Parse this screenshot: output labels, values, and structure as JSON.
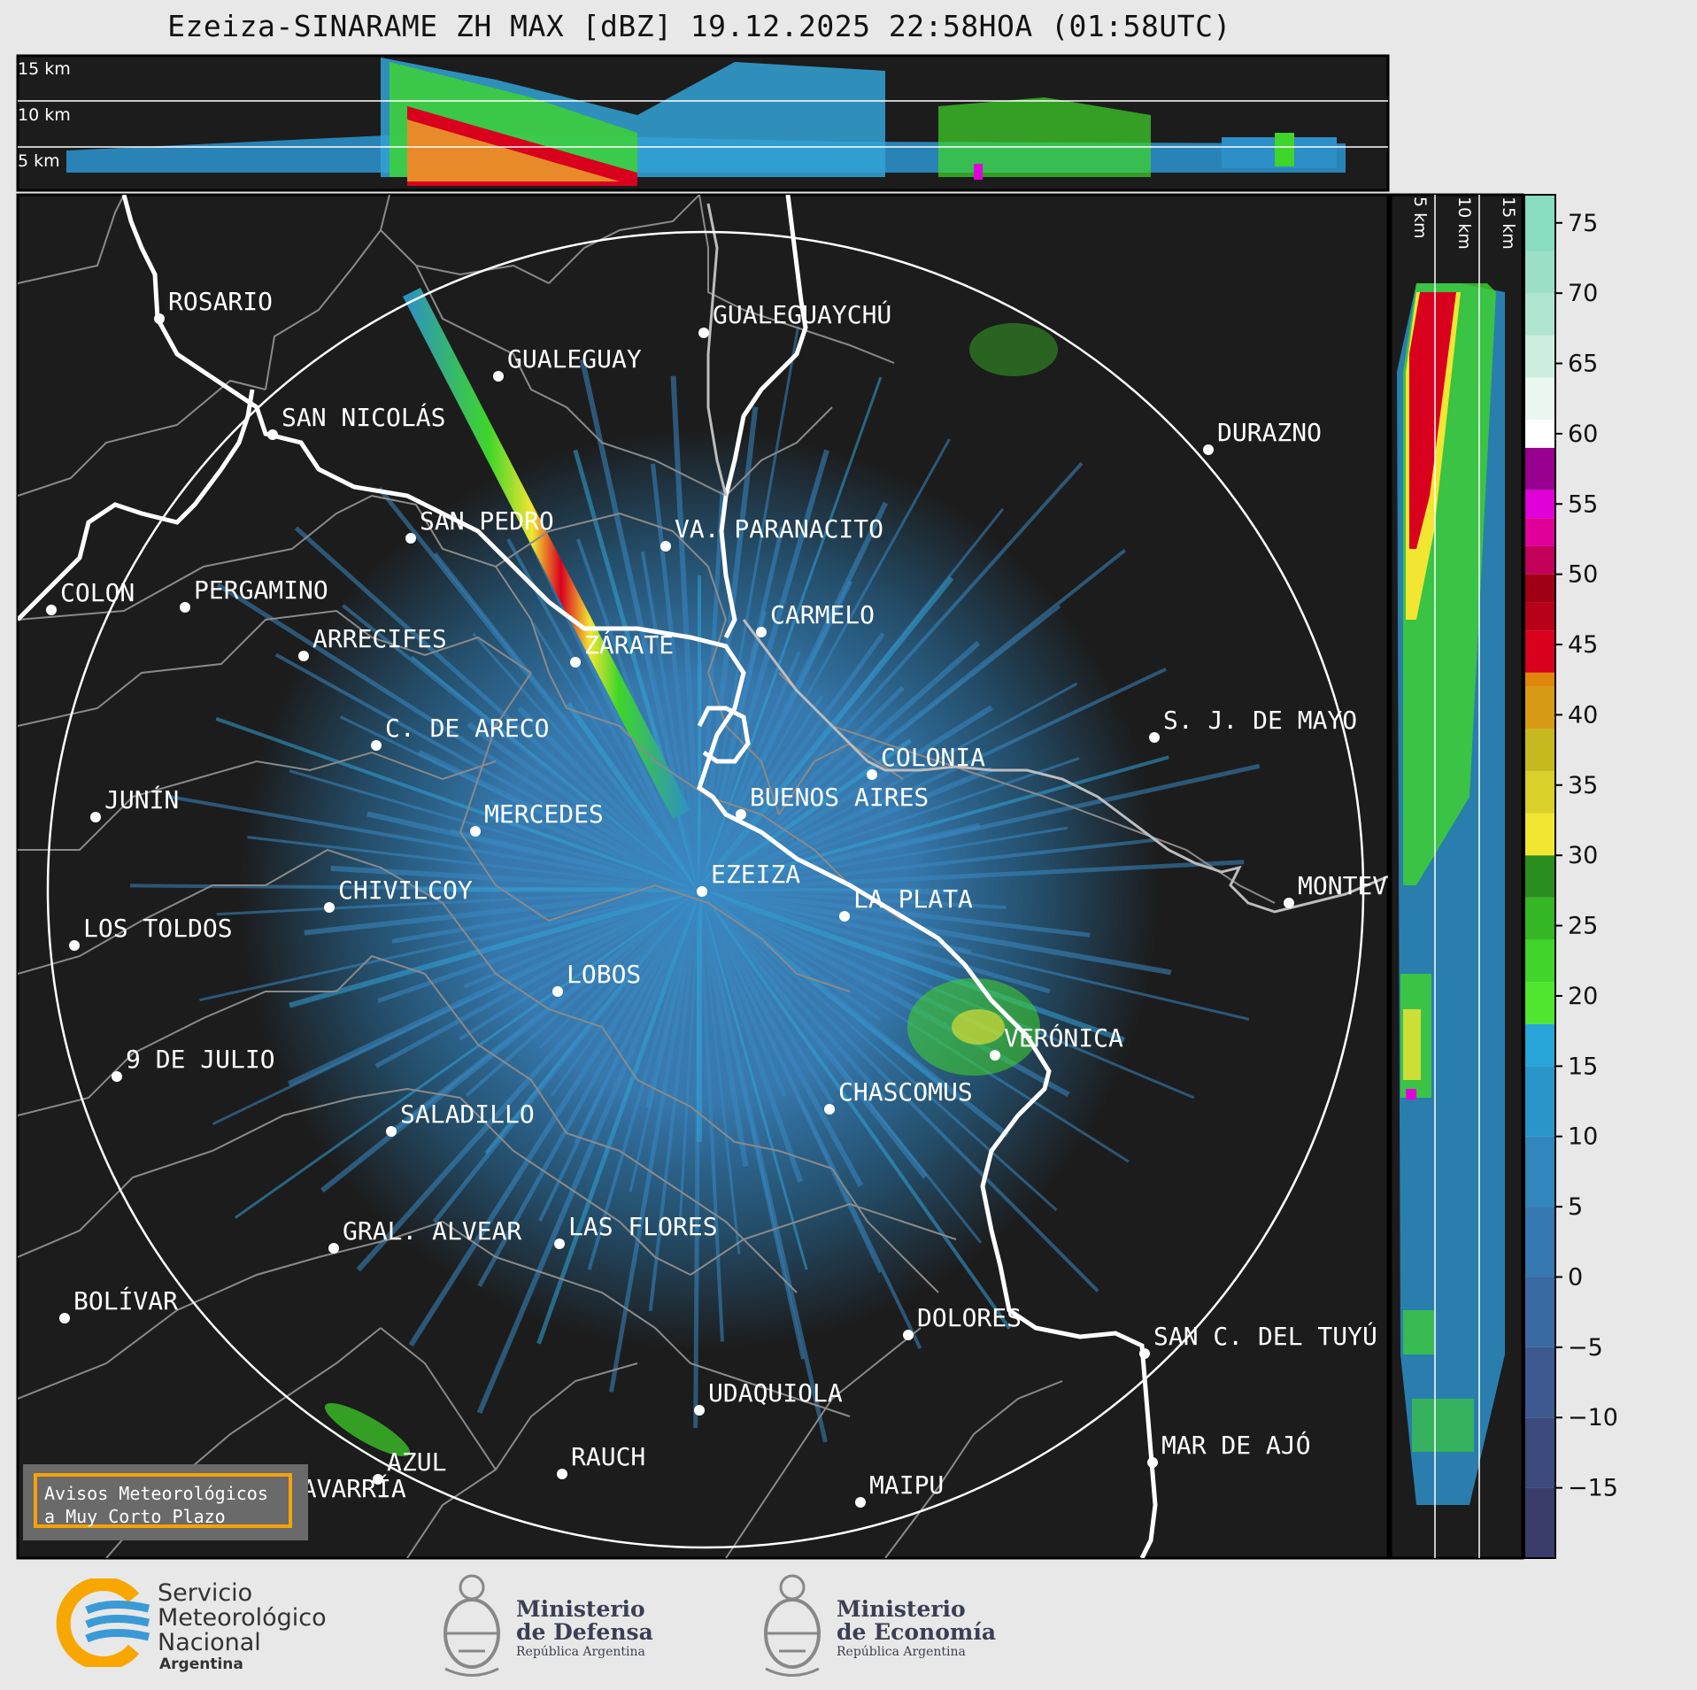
{
  "title": "Ezeiza-SINARAME ZH MAX [dBZ] 19.12.2025 22:58HOA (01:58UTC)",
  "altitude_labels": [
    "15 km",
    "10 km",
    "5 km"
  ],
  "side_altitude_labels": [
    "5 km",
    "10 km",
    "15 km"
  ],
  "colorbar": {
    "ticks": [
      "75",
      "70",
      "65",
      "60",
      "55",
      "50",
      "45",
      "40",
      "35",
      "30",
      "25",
      "20",
      "15",
      "10",
      "5",
      "0",
      "−5",
      "−10",
      "−15"
    ],
    "colors": {
      "low": "#3b3f6e",
      "blue": "#2c8fc8",
      "green": "#3fd52a",
      "yellow": "#f2e632",
      "red": "#d9001e",
      "magenta": "#e000d8",
      "white": "#ffffff",
      "teal": "#88dcbf"
    }
  },
  "cities": [
    {
      "name": "ROSARIO"
    },
    {
      "name": "GUALEGUAYCHÚ"
    },
    {
      "name": "GUALEGUAY"
    },
    {
      "name": "SAN NICOLÁS"
    },
    {
      "name": "DURAZNO"
    },
    {
      "name": "SAN PEDRO"
    },
    {
      "name": "VA. PARANACITO"
    },
    {
      "name": "COLON"
    },
    {
      "name": "PERGAMINO"
    },
    {
      "name": "CARMELO"
    },
    {
      "name": "ARRECIFES"
    },
    {
      "name": "ZÁRATE"
    },
    {
      "name": "S. J. DE MAYO"
    },
    {
      "name": "C. DE ARECO"
    },
    {
      "name": "COLONIA"
    },
    {
      "name": "JUNÍN"
    },
    {
      "name": "BUENOS AIRES"
    },
    {
      "name": "MERCEDES"
    },
    {
      "name": "EZEIZA"
    },
    {
      "name": "MONTEV"
    },
    {
      "name": "CHIVILCOY"
    },
    {
      "name": "LA PLATA"
    },
    {
      "name": "LOS TOLDOS"
    },
    {
      "name": "LOBOS"
    },
    {
      "name": "VERÓNICA"
    },
    {
      "name": "9 DE JULIO"
    },
    {
      "name": "CHASCOMUS"
    },
    {
      "name": "SALADILLO"
    },
    {
      "name": "GRAL. ALVEAR"
    },
    {
      "name": "LAS FLORES"
    },
    {
      "name": "BOLÍVAR"
    },
    {
      "name": "DOLORES"
    },
    {
      "name": "SAN C. DEL TUYÚ"
    },
    {
      "name": "UDAQUIOLA"
    },
    {
      "name": "MAR DE AJÓ"
    },
    {
      "name": "AZUL"
    },
    {
      "name": "RAUCH"
    },
    {
      "name": "OLAVARRÍA"
    },
    {
      "name": "MAIPU"
    }
  ],
  "alert": {
    "line1": "Avisos Meteorológicos",
    "line2": "a Muy Corto Plazo"
  },
  "logos": {
    "smn": {
      "line1": "Servicio",
      "line2": "Meteorológico",
      "line3": "Nacional",
      "line4": "Argentina"
    },
    "defensa": {
      "line1": "Ministerio",
      "line2": "de Defensa",
      "line3": "República Argentina"
    },
    "economia": {
      "line1": "Ministerio",
      "line2": "de Economía",
      "line3": "República Argentina"
    }
  }
}
